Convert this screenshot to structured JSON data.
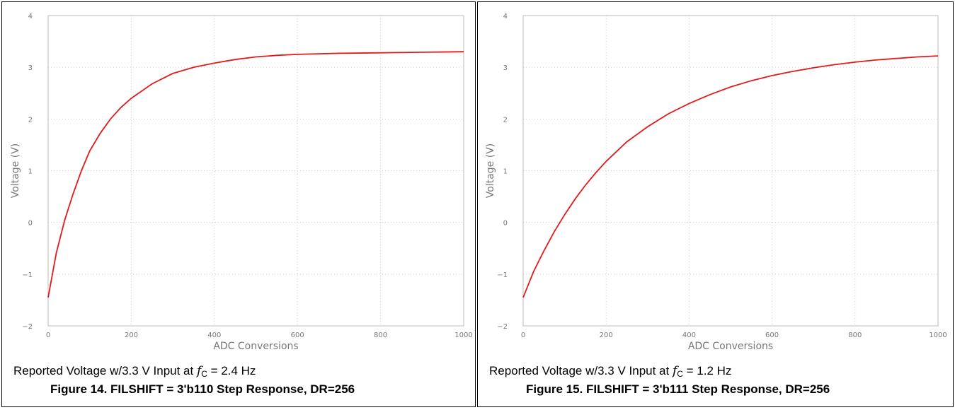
{
  "chart_data": [
    {
      "type": "line",
      "title": "",
      "xlabel": "ADC Conversions",
      "ylabel": "Voltage (V)",
      "xlim": [
        0,
        1000
      ],
      "ylim": [
        -2,
        4
      ],
      "xticks": [
        "0",
        "200",
        "400",
        "600",
        "800",
        "1000"
      ],
      "yticks": [
        "−2",
        "−1",
        "0",
        "1",
        "2",
        "3",
        "4"
      ],
      "grid": true,
      "series_color": "#e31a1c",
      "series": [
        {
          "x": [
            0,
            20,
            40,
            60,
            80,
            100,
            125,
            150,
            175,
            200,
            250,
            300,
            350,
            400,
            450,
            500,
            550,
            600,
            700,
            800,
            900,
            1000
          ],
          "values": [
            -1.45,
            -0.58,
            0.05,
            0.55,
            1.0,
            1.38,
            1.72,
            2.0,
            2.22,
            2.4,
            2.68,
            2.88,
            3.0,
            3.08,
            3.15,
            3.2,
            3.23,
            3.25,
            3.27,
            3.28,
            3.29,
            3.3
          ]
        }
      ],
      "caption": {
        "pre": "Reported Voltage w/3.3 V Input at ",
        "f": "f",
        "sub": "C",
        "post": " = 2.4 Hz"
      },
      "figure_title": "Figure 14. FILSHIFT = 3'b110 Step Response, DR=256"
    },
    {
      "type": "line",
      "title": "",
      "xlabel": "ADC Conversions",
      "ylabel": "Voltage (V)",
      "xlim": [
        0,
        1000
      ],
      "ylim": [
        -2,
        4
      ],
      "xticks": [
        "0",
        "200",
        "400",
        "600",
        "800",
        "1000"
      ],
      "yticks": [
        "−2",
        "−1",
        "0",
        "1",
        "2",
        "3",
        "4"
      ],
      "grid": true,
      "series_color": "#e31a1c",
      "series": [
        {
          "x": [
            0,
            25,
            50,
            75,
            100,
            125,
            150,
            175,
            200,
            250,
            300,
            350,
            400,
            450,
            500,
            550,
            600,
            650,
            700,
            750,
            800,
            850,
            900,
            950,
            1000
          ],
          "values": [
            -1.45,
            -0.95,
            -0.55,
            -0.18,
            0.15,
            0.45,
            0.72,
            0.96,
            1.18,
            1.56,
            1.85,
            2.1,
            2.3,
            2.47,
            2.62,
            2.74,
            2.84,
            2.92,
            2.99,
            3.05,
            3.1,
            3.14,
            3.17,
            3.2,
            3.22
          ]
        }
      ],
      "caption": {
        "pre": "Reported Voltage w/3.3 V Input at ",
        "f": "f",
        "sub": "C",
        "post": " = 1.2 Hz"
      },
      "figure_title": "Figure 15. FILSHIFT = 3'b111 Step Response, DR=256"
    }
  ]
}
